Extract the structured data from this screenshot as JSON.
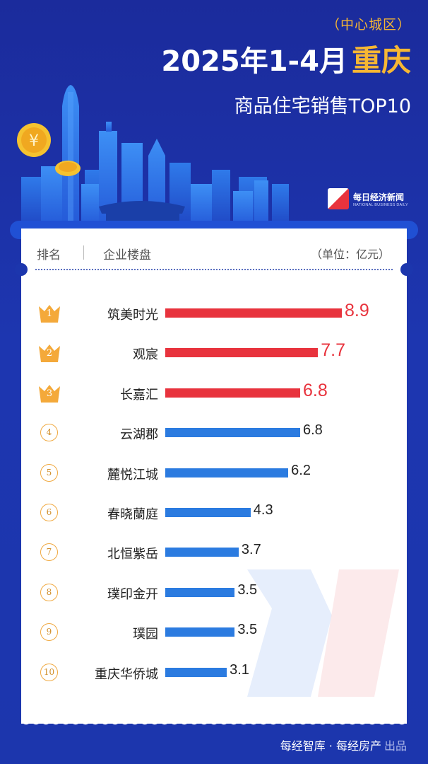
{
  "header": {
    "area": "（中心城区）",
    "title": "2025年1-4月",
    "city": "重庆",
    "subtitle": "商品住宅销售TOP10"
  },
  "logo": {
    "cn": "每日经济新闻",
    "en": "NATIONAL BUSINESS DAILY"
  },
  "table": {
    "col_rank": "排名",
    "col_name": "企业楼盘",
    "unit": "（单位：亿元）"
  },
  "colors": {
    "top3": "#e8333d",
    "rest": "#2b7be0",
    "gold": "#f4a93a",
    "background": "#1c36ad"
  },
  "chart_data": {
    "type": "bar",
    "orientation": "horizontal",
    "categories": [
      "筑美时光",
      "观宸",
      "长嘉汇",
      "云湖郡",
      "麓悦江城",
      "春晓蘭庭",
      "北恒紫岳",
      "璞印金开",
      "璞园",
      "重庆华侨城"
    ],
    "ranks": [
      "1",
      "2",
      "3",
      "4",
      "5",
      "6",
      "7",
      "8",
      "9",
      "10"
    ],
    "values": [
      8.9,
      7.7,
      6.8,
      6.8,
      6.2,
      4.3,
      3.7,
      3.5,
      3.5,
      3.1
    ],
    "value_labels": [
      "8.9",
      "7.7",
      "6.8",
      "6.8",
      "6.2",
      "4.3",
      "3.7",
      "3.5",
      "3.5",
      "3.1"
    ],
    "xlim": [
      0,
      8.9
    ],
    "grid": false,
    "legend": "none"
  },
  "footer": {
    "source": "每经智库 · 每经房产",
    "suffix": "出品"
  }
}
